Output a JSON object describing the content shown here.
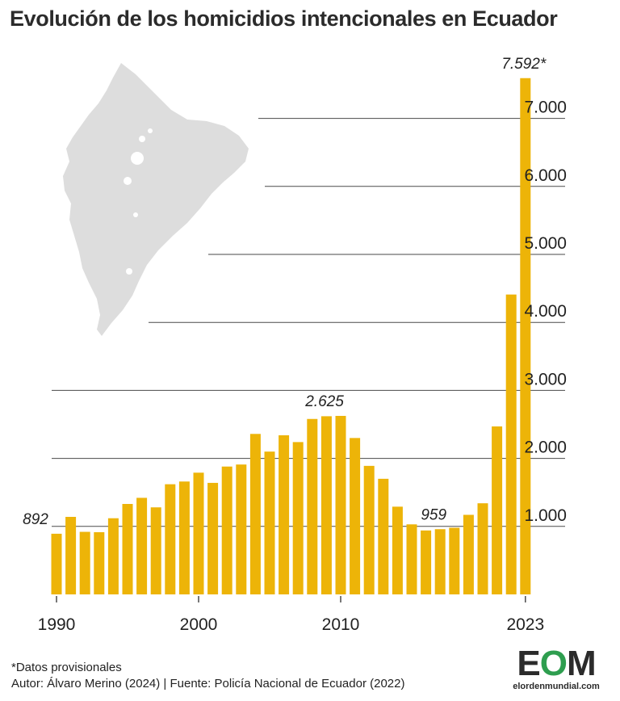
{
  "title": "Evolución de los homicidios intencionales en Ecuador",
  "footer": {
    "note": "*Datos provisionales",
    "credit": "Autor: Álvaro Merino (2024) | Fuente: Policía Nacional de Ecuador (2022)"
  },
  "logo": {
    "mark": "EOM",
    "url": "elordenmundial.com"
  },
  "colors": {
    "bar": "#EDB408",
    "grid": "#4a4a4a",
    "map": "#dddddd",
    "text": "#222222"
  },
  "chart_data": {
    "type": "bar",
    "title": "Evolución de los homicidios intencionales en Ecuador",
    "x": [
      1990,
      1991,
      1992,
      1993,
      1994,
      1995,
      1996,
      1997,
      1998,
      1999,
      2000,
      2001,
      2002,
      2003,
      2004,
      2005,
      2006,
      2007,
      2008,
      2009,
      2010,
      2011,
      2012,
      2013,
      2014,
      2015,
      2016,
      2017,
      2018,
      2019,
      2020,
      2021,
      2022,
      2023
    ],
    "values": [
      892,
      1140,
      920,
      915,
      1120,
      1330,
      1420,
      1280,
      1620,
      1660,
      1790,
      1640,
      1880,
      1910,
      2360,
      2100,
      2340,
      2240,
      2580,
      2620,
      2625,
      2300,
      1890,
      1700,
      1290,
      1030,
      940,
      959,
      980,
      1170,
      1340,
      2470,
      4410,
      7592
    ],
    "x_tick_labels": [
      "1990",
      "2000",
      "2010",
      "2023"
    ],
    "x_ticks": [
      1990,
      2000,
      2010,
      2023
    ],
    "y_tick_labels": [
      "1.000",
      "2.000",
      "3.000",
      "4.000",
      "5.000",
      "6.000",
      "7.000"
    ],
    "y_ticks": [
      1000,
      2000,
      3000,
      4000,
      5000,
      6000,
      7000
    ],
    "ylim": [
      0,
      8000
    ],
    "annotations": [
      {
        "year": 1990,
        "text": "892"
      },
      {
        "year": 2010,
        "text": "2.625"
      },
      {
        "year": 2017,
        "text": "959"
      },
      {
        "year": 2023,
        "text": "7.592*"
      }
    ],
    "grid": true,
    "inset": "Ecuador map silhouette"
  }
}
